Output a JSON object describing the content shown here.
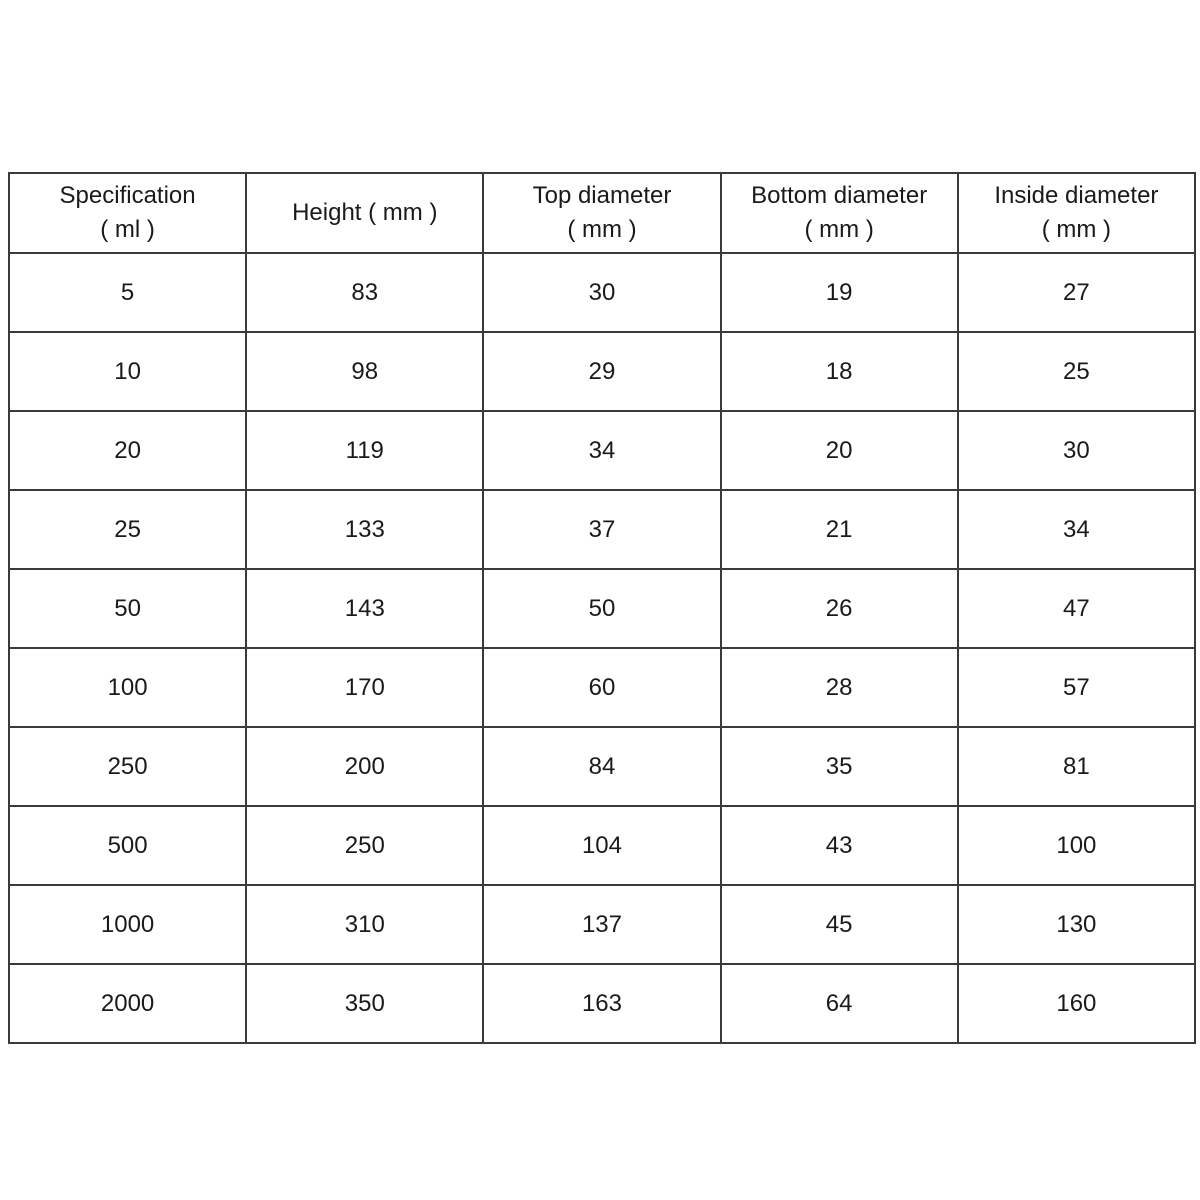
{
  "table": {
    "headers": [
      {
        "line1": "Specification",
        "line2": "( ml )"
      },
      {
        "line1": "Height ( mm )",
        "line2": ""
      },
      {
        "line1": "Top diameter",
        "line2": "( mm )"
      },
      {
        "line1": "Bottom diameter",
        "line2": "( mm )"
      },
      {
        "line1": "Inside diameter",
        "line2": "( mm )"
      }
    ],
    "rows": [
      [
        "5",
        "83",
        "30",
        "19",
        "27"
      ],
      [
        "10",
        "98",
        "29",
        "18",
        "25"
      ],
      [
        "20",
        "119",
        "34",
        "20",
        "30"
      ],
      [
        "25",
        "133",
        "37",
        "21",
        "34"
      ],
      [
        "50",
        "143",
        "50",
        "26",
        "47"
      ],
      [
        "100",
        "170",
        "60",
        "28",
        "57"
      ],
      [
        "250",
        "200",
        "84",
        "35",
        "81"
      ],
      [
        "500",
        "250",
        "104",
        "43",
        "100"
      ],
      [
        "1000",
        "310",
        "137",
        "45",
        "130"
      ],
      [
        "2000",
        "350",
        "163",
        "64",
        "160"
      ]
    ]
  }
}
